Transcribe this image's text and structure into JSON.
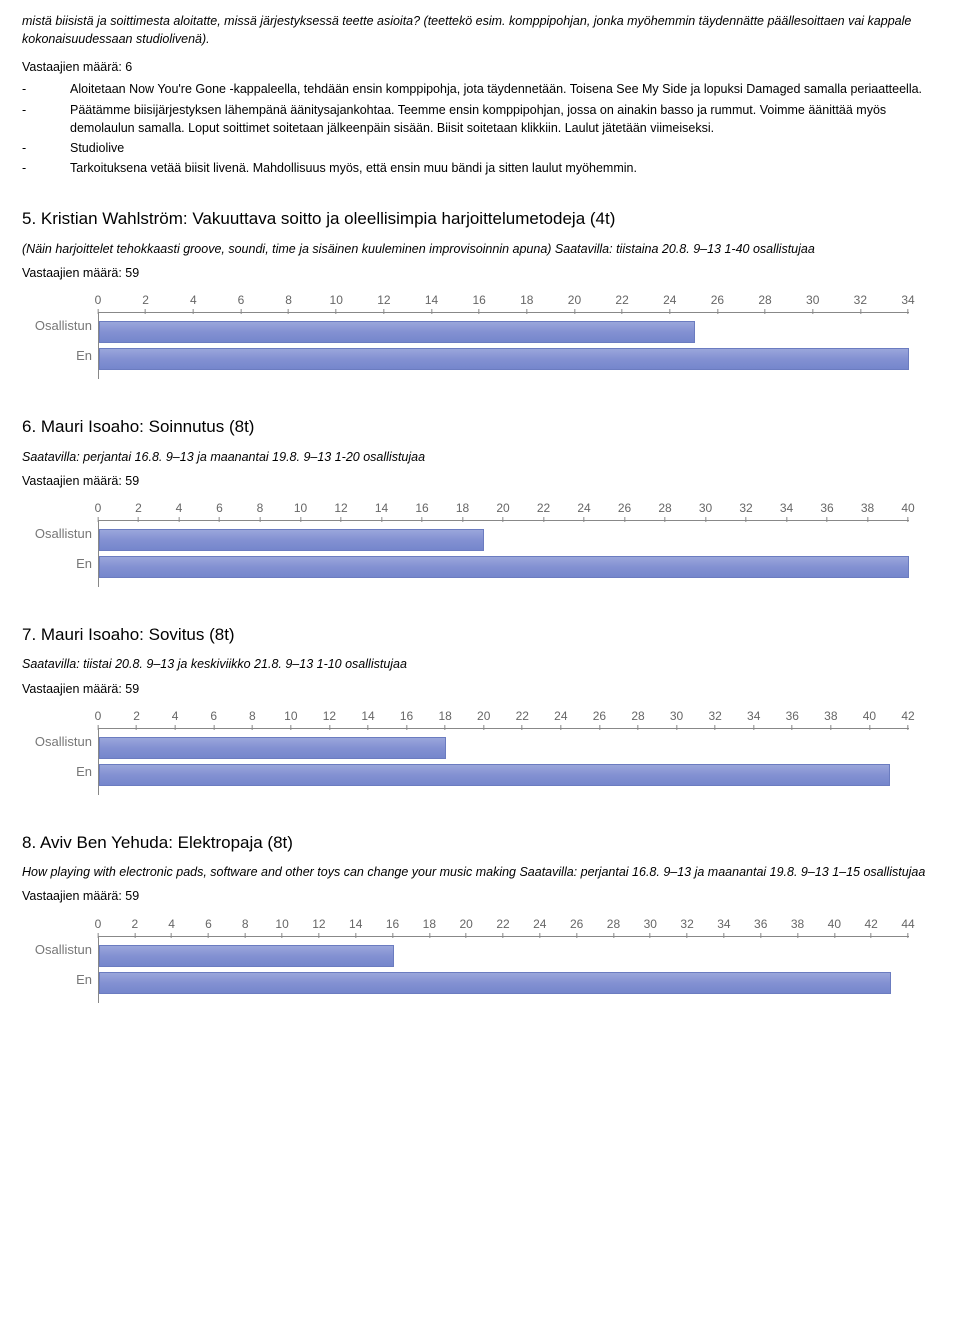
{
  "intro": {
    "text": "mistä biisistä ja soittimesta aloitatte, missä järjestyksessä teette asioita? (teettekö esim. komppipohjan, jonka myöhemmin täydennätte päällesoittaen vai kappale kokonaisuudessaan studiolivenä)."
  },
  "q4": {
    "resp": "Vastaajien määrä: 6",
    "bullets": [
      "Aloitetaan Now You're Gone -kappaleella, tehdään ensin komppipohja, jota täydennetään. Toisena See My Side ja lopuksi Damaged samalla periaatteella.",
      "Päätämme biisijärjestyksen lähempänä äänitysajankohtaa. Teemme ensin komppipohjan, jossa on ainakin basso ja rummut. Voimme äänittää myös demolaulun samalla. Loput soittimet soitetaan jälkeenpäin sisään. Biisit soitetaan klikkiin. Laulut jätetään viimeiseksi.",
      "Studiolive",
      "Tarkoituksena vetää biisit livenä. Mahdollisuus myös, että ensin muu bändi ja sitten laulut myöhemmin."
    ]
  },
  "q5": {
    "title": "5. Kristian Wahlström: Vakuuttava soitto ja oleellisimpia harjoittelumetodeja (4t)",
    "subtitle": "(Näin harjoittelet tehokkaasti groove, soundi, time ja sisäinen kuuleminen improvisoinnin apuna) Saatavilla: tiistaina 20.8.   9–13 1-40 osallistujaa",
    "resp": "Vastaajien määrä: 59",
    "chart": {
      "type": "bar",
      "categories": [
        "Osallistun",
        "En"
      ],
      "values": [
        25,
        34
      ],
      "xmax": 34,
      "tick_step": 2,
      "bar_color": "#8391d2",
      "axis_color": "#888888",
      "label_color": "#777777",
      "label_fontsize": 13,
      "tick_fontsize": 12,
      "background": "#ffffff"
    }
  },
  "q6": {
    "title": "6. Mauri Isoaho: Soinnutus (8t)",
    "subtitle": "Saatavilla: perjantai 16.8. 9–13 ja maanantai 19.8. 9–13 1-20 osallistujaa",
    "resp": "Vastaajien määrä: 59",
    "chart": {
      "type": "bar",
      "categories": [
        "Osallistun",
        "En"
      ],
      "values": [
        19,
        40
      ],
      "xmax": 40,
      "tick_step": 2,
      "bar_color": "#8391d2",
      "axis_color": "#888888",
      "label_color": "#777777",
      "label_fontsize": 13,
      "tick_fontsize": 12,
      "background": "#ffffff"
    }
  },
  "q7": {
    "title": "7. Mauri Isoaho: Sovitus (8t)",
    "subtitle": "Saatavilla: tiistai 20.8. 9–13 ja keskiviikko 21.8. 9–13 1-10 osallistujaa",
    "resp": "Vastaajien määrä: 59",
    "chart": {
      "type": "bar",
      "categories": [
        "Osallistun",
        "En"
      ],
      "values": [
        18,
        41
      ],
      "xmax": 42,
      "tick_step": 2,
      "bar_color": "#8391d2",
      "axis_color": "#888888",
      "label_color": "#777777",
      "label_fontsize": 13,
      "tick_fontsize": 12,
      "background": "#ffffff"
    }
  },
  "q8": {
    "title": "8. Aviv Ben Yehuda: Elektropaja (8t)",
    "subtitle": "How playing with electronic pads, software and other toys can change your music making Saatavilla: perjantai 16.8. 9–13 ja maanantai 19.8. 9–13 1–15 osallistujaa",
    "resp": "Vastaajien määrä: 59",
    "chart": {
      "type": "bar",
      "categories": [
        "Osallistun",
        "En"
      ],
      "values": [
        16,
        43
      ],
      "xmax": 44,
      "tick_step": 2,
      "bar_color": "#8391d2",
      "axis_color": "#888888",
      "label_color": "#777777",
      "label_fontsize": 13,
      "tick_fontsize": 12,
      "background": "#ffffff"
    }
  }
}
